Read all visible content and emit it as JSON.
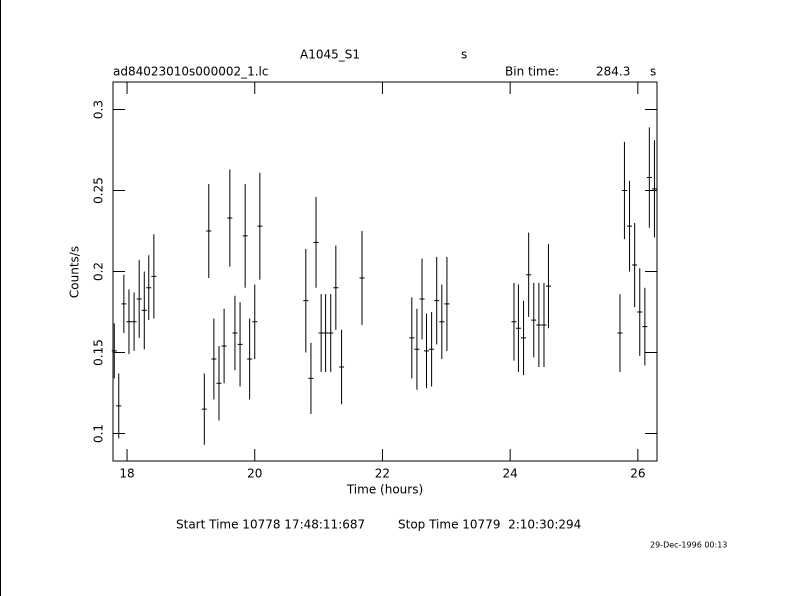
{
  "chart_data": {
    "type": "errorbar",
    "title": "A1045_S1",
    "title_unit": "s",
    "subtitle": "ad84023010s000002_1.lc",
    "bin_time_label": "Bin time:",
    "bin_time": "284.3",
    "bin_time_unit": "s",
    "xlabel": "Time (hours)",
    "ylabel": "Counts/s",
    "start_time": "Start Time 10778 17:48:11:687",
    "stop_time": "Stop Time 10779  2:10:30:294",
    "date": "29-Dec-1996 00:13",
    "xlim": [
      17.78,
      26.3
    ],
    "ylim": [
      0.083,
      0.317
    ],
    "xticks": [
      18,
      20,
      22,
      24,
      26
    ],
    "yticks": [
      0.1,
      0.15,
      0.2,
      0.25,
      0.3
    ],
    "color": "#000000",
    "x": [
      17.8,
      17.87,
      17.95,
      18.03,
      18.11,
      18.19,
      18.27,
      18.34,
      18.42,
      19.21,
      19.28,
      19.36,
      19.44,
      19.52,
      19.61,
      19.69,
      19.77,
      19.85,
      19.92,
      20.0,
      20.08,
      20.8,
      20.88,
      20.96,
      21.04,
      21.11,
      21.19,
      21.27,
      21.36,
      21.68,
      22.46,
      22.54,
      22.62,
      22.69,
      22.77,
      22.85,
      22.93,
      23.01,
      24.06,
      24.13,
      24.21,
      24.29,
      24.37,
      24.45,
      24.53,
      24.6,
      25.72,
      25.79,
      25.87,
      25.95,
      26.03,
      26.11,
      26.18,
      26.26
    ],
    "values": [
      0.151,
      0.117,
      0.18,
      0.169,
      0.169,
      0.183,
      0.176,
      0.19,
      0.197,
      0.115,
      0.225,
      0.146,
      0.131,
      0.154,
      0.233,
      0.162,
      0.155,
      0.222,
      0.146,
      0.169,
      0.228,
      0.182,
      0.134,
      0.218,
      0.162,
      0.162,
      0.162,
      0.19,
      0.141,
      0.196,
      0.159,
      0.152,
      0.183,
      0.151,
      0.152,
      0.182,
      0.169,
      0.18,
      0.169,
      0.165,
      0.159,
      0.198,
      0.17,
      0.167,
      0.167,
      0.191,
      0.162,
      0.25,
      0.228,
      0.204,
      0.175,
      0.166,
      0.258,
      0.251
    ],
    "errors": [
      0.017,
      0.02,
      0.018,
      0.02,
      0.018,
      0.024,
      0.024,
      0.02,
      0.026,
      0.022,
      0.029,
      0.025,
      0.023,
      0.023,
      0.03,
      0.023,
      0.026,
      0.032,
      0.025,
      0.023,
      0.033,
      0.032,
      0.022,
      0.028,
      0.024,
      0.024,
      0.024,
      0.026,
      0.023,
      0.029,
      0.025,
      0.025,
      0.025,
      0.023,
      0.023,
      0.027,
      0.023,
      0.029,
      0.024,
      0.027,
      0.023,
      0.026,
      0.023,
      0.026,
      0.026,
      0.026,
      0.024,
      0.03,
      0.028,
      0.026,
      0.027,
      0.024,
      0.031,
      0.03
    ]
  }
}
